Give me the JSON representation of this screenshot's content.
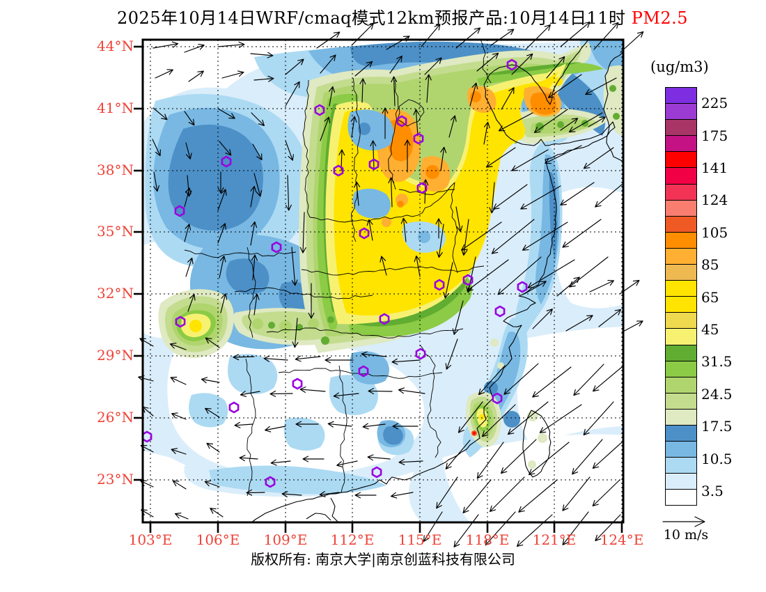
{
  "title": {
    "prefix": "2025年10月14日WRF/cmaq模式12km预报产品:10月14日11时",
    "species": "PM2.5"
  },
  "colors": {
    "axis_label_red": "#ee4237",
    "species_red": "#fe0000",
    "city_marker_violet": "#9900e0",
    "wind_arrow": "#000000"
  },
  "axes": {
    "lat_labels": [
      "44°N",
      "41°N",
      "38°N",
      "35°N",
      "32°N",
      "29°N",
      "26°N",
      "23°N"
    ],
    "lon_labels": [
      "103°E",
      "106°E",
      "109°E",
      "112°E",
      "115°E",
      "118°E",
      "121°E",
      "124°E"
    ]
  },
  "legend": {
    "units": "(ug/m3)",
    "labels": [
      "225",
      "175",
      "141",
      "124",
      "105",
      "85",
      "65",
      "45",
      "31.5",
      "24.5",
      "17.5",
      "10.5",
      "3.5"
    ],
    "colors_top_to_bottom": [
      "#7d2ee0",
      "#9c3bd3",
      "#a93566",
      "#c41284",
      "#fe0000",
      "#f10045",
      "#f23356",
      "#f97e70",
      "#ef5a24",
      "#fe8d00",
      "#ffaf31",
      "#efb952",
      "#ffe400",
      "#ffe400",
      "#efd94e",
      "#f7f172",
      "#61ad31",
      "#8ccb45",
      "#b0d56f",
      "#c3dc8e",
      "#dfe9c2",
      "#4c90c7",
      "#78b8e3",
      "#acdaf3",
      "#daedfa",
      "#ffffff"
    ]
  },
  "wind_reference": {
    "label": "10 m/s"
  },
  "footer": {
    "copyright": "版权所有: 南京大学|南京创蓝科技有限公司"
  },
  "map": {
    "city_markers": [
      [
        530,
        36
      ],
      [
        254,
        101
      ],
      [
        372,
        117
      ],
      [
        396,
        142
      ],
      [
        120,
        175
      ],
      [
        281,
        188
      ],
      [
        332,
        179
      ],
      [
        401,
        213
      ],
      [
        318,
        278
      ],
      [
        192,
        298
      ],
      [
        53,
        246
      ],
      [
        426,
        352
      ],
      [
        467,
        345
      ],
      [
        545,
        355
      ],
      [
        513,
        390
      ],
      [
        347,
        401
      ],
      [
        54,
        405
      ],
      [
        399,
        451
      ],
      [
        317,
        476
      ],
      [
        222,
        494
      ],
      [
        131,
        528
      ],
      [
        6,
        570
      ],
      [
        509,
        515
      ],
      [
        336,
        621
      ],
      [
        183,
        635
      ]
    ],
    "wind_vectors": [
      [
        15,
        12,
        10,
        36
      ],
      [
        60,
        18,
        20,
        30
      ],
      [
        108,
        10,
        5,
        38
      ],
      [
        155,
        20,
        -5,
        32
      ],
      [
        18,
        55,
        25,
        28
      ],
      [
        66,
        60,
        35,
        26
      ],
      [
        114,
        55,
        15,
        32
      ],
      [
        160,
        58,
        5,
        28
      ],
      [
        205,
        50,
        40,
        34
      ],
      [
        15,
        98,
        -40,
        26
      ],
      [
        60,
        103,
        -55,
        24
      ],
      [
        108,
        99,
        -30,
        28
      ],
      [
        156,
        105,
        -45,
        26
      ],
      [
        205,
        95,
        60,
        40
      ],
      [
        14,
        143,
        -65,
        26
      ],
      [
        62,
        148,
        -75,
        24
      ],
      [
        110,
        146,
        -50,
        26
      ],
      [
        158,
        150,
        -60,
        26
      ],
      [
        205,
        145,
        -70,
        30
      ],
      [
        255,
        145,
        70,
        36
      ],
      [
        16,
        190,
        -80,
        28
      ],
      [
        64,
        195,
        -85,
        30
      ],
      [
        112,
        190,
        -90,
        30
      ],
      [
        160,
        192,
        -75,
        34
      ],
      [
        250,
        12,
        35,
        40
      ],
      [
        300,
        8,
        45,
        44
      ],
      [
        350,
        14,
        30,
        38
      ],
      [
        400,
        10,
        50,
        42
      ],
      [
        450,
        12,
        40,
        45
      ],
      [
        500,
        8,
        35,
        40
      ],
      [
        550,
        14,
        45,
        50
      ],
      [
        600,
        10,
        40,
        55
      ],
      [
        648,
        14,
        48,
        52
      ],
      [
        686,
        18,
        42,
        44
      ],
      [
        255,
        48,
        50,
        34
      ],
      [
        305,
        52,
        40,
        32
      ],
      [
        355,
        48,
        55,
        30
      ],
      [
        405,
        50,
        45,
        34
      ],
      [
        480,
        45,
        40,
        40
      ],
      [
        530,
        50,
        45,
        42
      ],
      [
        580,
        55,
        50,
        40
      ],
      [
        630,
        50,
        215,
        58
      ],
      [
        680,
        55,
        208,
        50
      ],
      [
        268,
        95,
        80,
        28
      ],
      [
        315,
        90,
        88,
        34
      ],
      [
        362,
        95,
        92,
        42
      ],
      [
        408,
        90,
        86,
        40
      ],
      [
        300,
        140,
        82,
        30
      ],
      [
        348,
        142,
        90,
        44
      ],
      [
        395,
        138,
        94,
        38
      ],
      [
        440,
        140,
        75,
        32
      ],
      [
        285,
        188,
        88,
        30
      ],
      [
        332,
        185,
        92,
        40
      ],
      [
        380,
        190,
        90,
        46
      ],
      [
        428,
        188,
        82,
        34
      ],
      [
        310,
        238,
        95,
        34
      ],
      [
        358,
        240,
        92,
        42
      ],
      [
        405,
        235,
        88,
        34
      ],
      [
        450,
        240,
        280,
        36
      ],
      [
        330,
        288,
        100,
        30
      ],
      [
        378,
        290,
        96,
        34
      ],
      [
        425,
        285,
        90,
        28
      ],
      [
        350,
        338,
        105,
        28
      ],
      [
        398,
        340,
        100,
        30
      ],
      [
        208,
        195,
        272,
        50
      ],
      [
        232,
        248,
        268,
        58
      ],
      [
        214,
        298,
        275,
        55
      ],
      [
        242,
        350,
        270,
        50
      ],
      [
        222,
        400,
        265,
        42
      ],
      [
        60,
        240,
        75,
        28
      ],
      [
        108,
        245,
        70,
        32
      ],
      [
        155,
        240,
        80,
        30
      ],
      [
        60,
        290,
        75,
        26
      ],
      [
        108,
        292,
        70,
        30
      ],
      [
        155,
        295,
        80,
        34
      ],
      [
        62,
        340,
        72,
        28
      ],
      [
        110,
        342,
        78,
        32
      ],
      [
        158,
        345,
        85,
        36
      ],
      [
        65,
        390,
        70,
        26
      ],
      [
        112,
        392,
        76,
        28
      ],
      [
        160,
        395,
        82,
        30
      ],
      [
        470,
        95,
        75,
        34
      ],
      [
        515,
        100,
        60,
        36
      ],
      [
        560,
        105,
        208,
        55
      ],
      [
        610,
        100,
        215,
        58
      ],
      [
        660,
        105,
        210,
        55
      ],
      [
        490,
        150,
        80,
        32
      ],
      [
        535,
        155,
        214,
        50
      ],
      [
        582,
        158,
        210,
        60
      ],
      [
        630,
        152,
        206,
        58
      ],
      [
        676,
        155,
        215,
        52
      ],
      [
        505,
        205,
        265,
        44
      ],
      [
        552,
        208,
        216,
        60
      ],
      [
        600,
        210,
        210,
        66
      ],
      [
        648,
        205,
        214,
        58
      ],
      [
        688,
        208,
        220,
        50
      ],
      [
        600,
        130,
        35,
        30
      ],
      [
        640,
        125,
        30,
        28
      ],
      [
        468,
        258,
        262,
        52
      ],
      [
        515,
        262,
        215,
        70
      ],
      [
        562,
        258,
        219,
        78
      ],
      [
        610,
        262,
        212,
        76
      ],
      [
        658,
        258,
        216,
        68
      ],
      [
        478,
        312,
        258,
        52
      ],
      [
        525,
        316,
        217,
        74
      ],
      [
        572,
        312,
        221,
        82
      ],
      [
        620,
        316,
        211,
        78
      ],
      [
        668,
        312,
        218,
        70
      ],
      [
        432,
        265,
        262,
        48
      ],
      [
        445,
        320,
        258,
        52
      ],
      [
        460,
        375,
        255,
        50
      ],
      [
        452,
        430,
        250,
        46
      ],
      [
        548,
        365,
        30,
        36
      ],
      [
        595,
        368,
        40,
        42
      ],
      [
        642,
        362,
        25,
        38
      ],
      [
        685,
        365,
        35,
        34
      ],
      [
        560,
        415,
        45,
        40
      ],
      [
        608,
        418,
        30,
        44
      ],
      [
        655,
        412,
        38,
        40
      ],
      [
        688,
        420,
        28,
        34
      ],
      [
        520,
        468,
        228,
        56
      ],
      [
        568,
        465,
        222,
        66
      ],
      [
        615,
        470,
        218,
        70
      ],
      [
        662,
        466,
        226,
        62
      ],
      [
        688,
        470,
        220,
        54
      ],
      [
        488,
        520,
        232,
        56
      ],
      [
        535,
        524,
        224,
        66
      ],
      [
        582,
        520,
        219,
        74
      ],
      [
        630,
        524,
        214,
        72
      ],
      [
        676,
        520,
        228,
        64
      ],
      [
        470,
        575,
        230,
        54
      ],
      [
        518,
        578,
        234,
        64
      ],
      [
        565,
        574,
        224,
        70
      ],
      [
        612,
        578,
        219,
        74
      ],
      [
        660,
        574,
        229,
        66
      ],
      [
        688,
        578,
        222,
        56
      ],
      [
        452,
        628,
        236,
        54
      ],
      [
        500,
        632,
        230,
        62
      ],
      [
        548,
        628,
        225,
        70
      ],
      [
        595,
        632,
        220,
        72
      ],
      [
        642,
        628,
        231,
        62
      ],
      [
        685,
        632,
        224,
        54
      ],
      [
        430,
        678,
        238,
        50
      ],
      [
        482,
        682,
        233,
        58
      ],
      [
        535,
        678,
        228,
        64
      ],
      [
        588,
        682,
        222,
        68
      ],
      [
        640,
        678,
        232,
        60
      ],
      [
        686,
        682,
        226,
        52
      ],
      [
        160,
        455,
        182,
        30
      ],
      [
        208,
        460,
        176,
        34
      ],
      [
        255,
        455,
        186,
        36
      ],
      [
        302,
        460,
        180,
        40
      ],
      [
        350,
        455,
        174,
        36
      ],
      [
        398,
        460,
        184,
        40
      ],
      [
        168,
        505,
        190,
        28
      ],
      [
        215,
        508,
        181,
        32
      ],
      [
        262,
        505,
        175,
        36
      ],
      [
        310,
        508,
        186,
        36
      ],
      [
        358,
        505,
        179,
        34
      ],
      [
        405,
        508,
        172,
        38
      ],
      [
        158,
        552,
        184,
        26
      ],
      [
        205,
        555,
        191,
        30
      ],
      [
        252,
        552,
        180,
        32
      ],
      [
        300,
        555,
        174,
        34
      ],
      [
        348,
        552,
        187,
        32
      ],
      [
        395,
        555,
        180,
        36
      ],
      [
        165,
        602,
        176,
        26
      ],
      [
        212,
        605,
        186,
        28
      ],
      [
        260,
        602,
        180,
        30
      ],
      [
        308,
        605,
        192,
        30
      ],
      [
        355,
        602,
        175,
        32
      ],
      [
        402,
        605,
        183,
        34
      ],
      [
        175,
        650,
        181,
        26
      ],
      [
        228,
        654,
        176,
        28
      ],
      [
        282,
        650,
        187,
        28
      ],
      [
        335,
        654,
        180,
        30
      ],
      [
        388,
        650,
        190,
        32
      ],
      [
        15,
        440,
        150,
        22
      ],
      [
        62,
        445,
        160,
        24
      ],
      [
        110,
        442,
        145,
        24
      ],
      [
        15,
        490,
        165,
        22
      ],
      [
        62,
        495,
        155,
        24
      ],
      [
        110,
        492,
        170,
        26
      ],
      [
        15,
        540,
        140,
        20
      ],
      [
        62,
        545,
        158,
        22
      ],
      [
        110,
        542,
        148,
        24
      ],
      [
        15,
        592,
        152,
        20
      ],
      [
        62,
        595,
        162,
        22
      ],
      [
        110,
        592,
        145,
        22
      ],
      [
        15,
        642,
        155,
        20
      ],
      [
        62,
        645,
        148,
        22
      ],
      [
        110,
        642,
        160,
        22
      ],
      [
        15,
        685,
        150,
        20
      ],
      [
        65,
        688,
        158,
        20
      ],
      [
        115,
        685,
        146,
        22
      ]
    ]
  }
}
